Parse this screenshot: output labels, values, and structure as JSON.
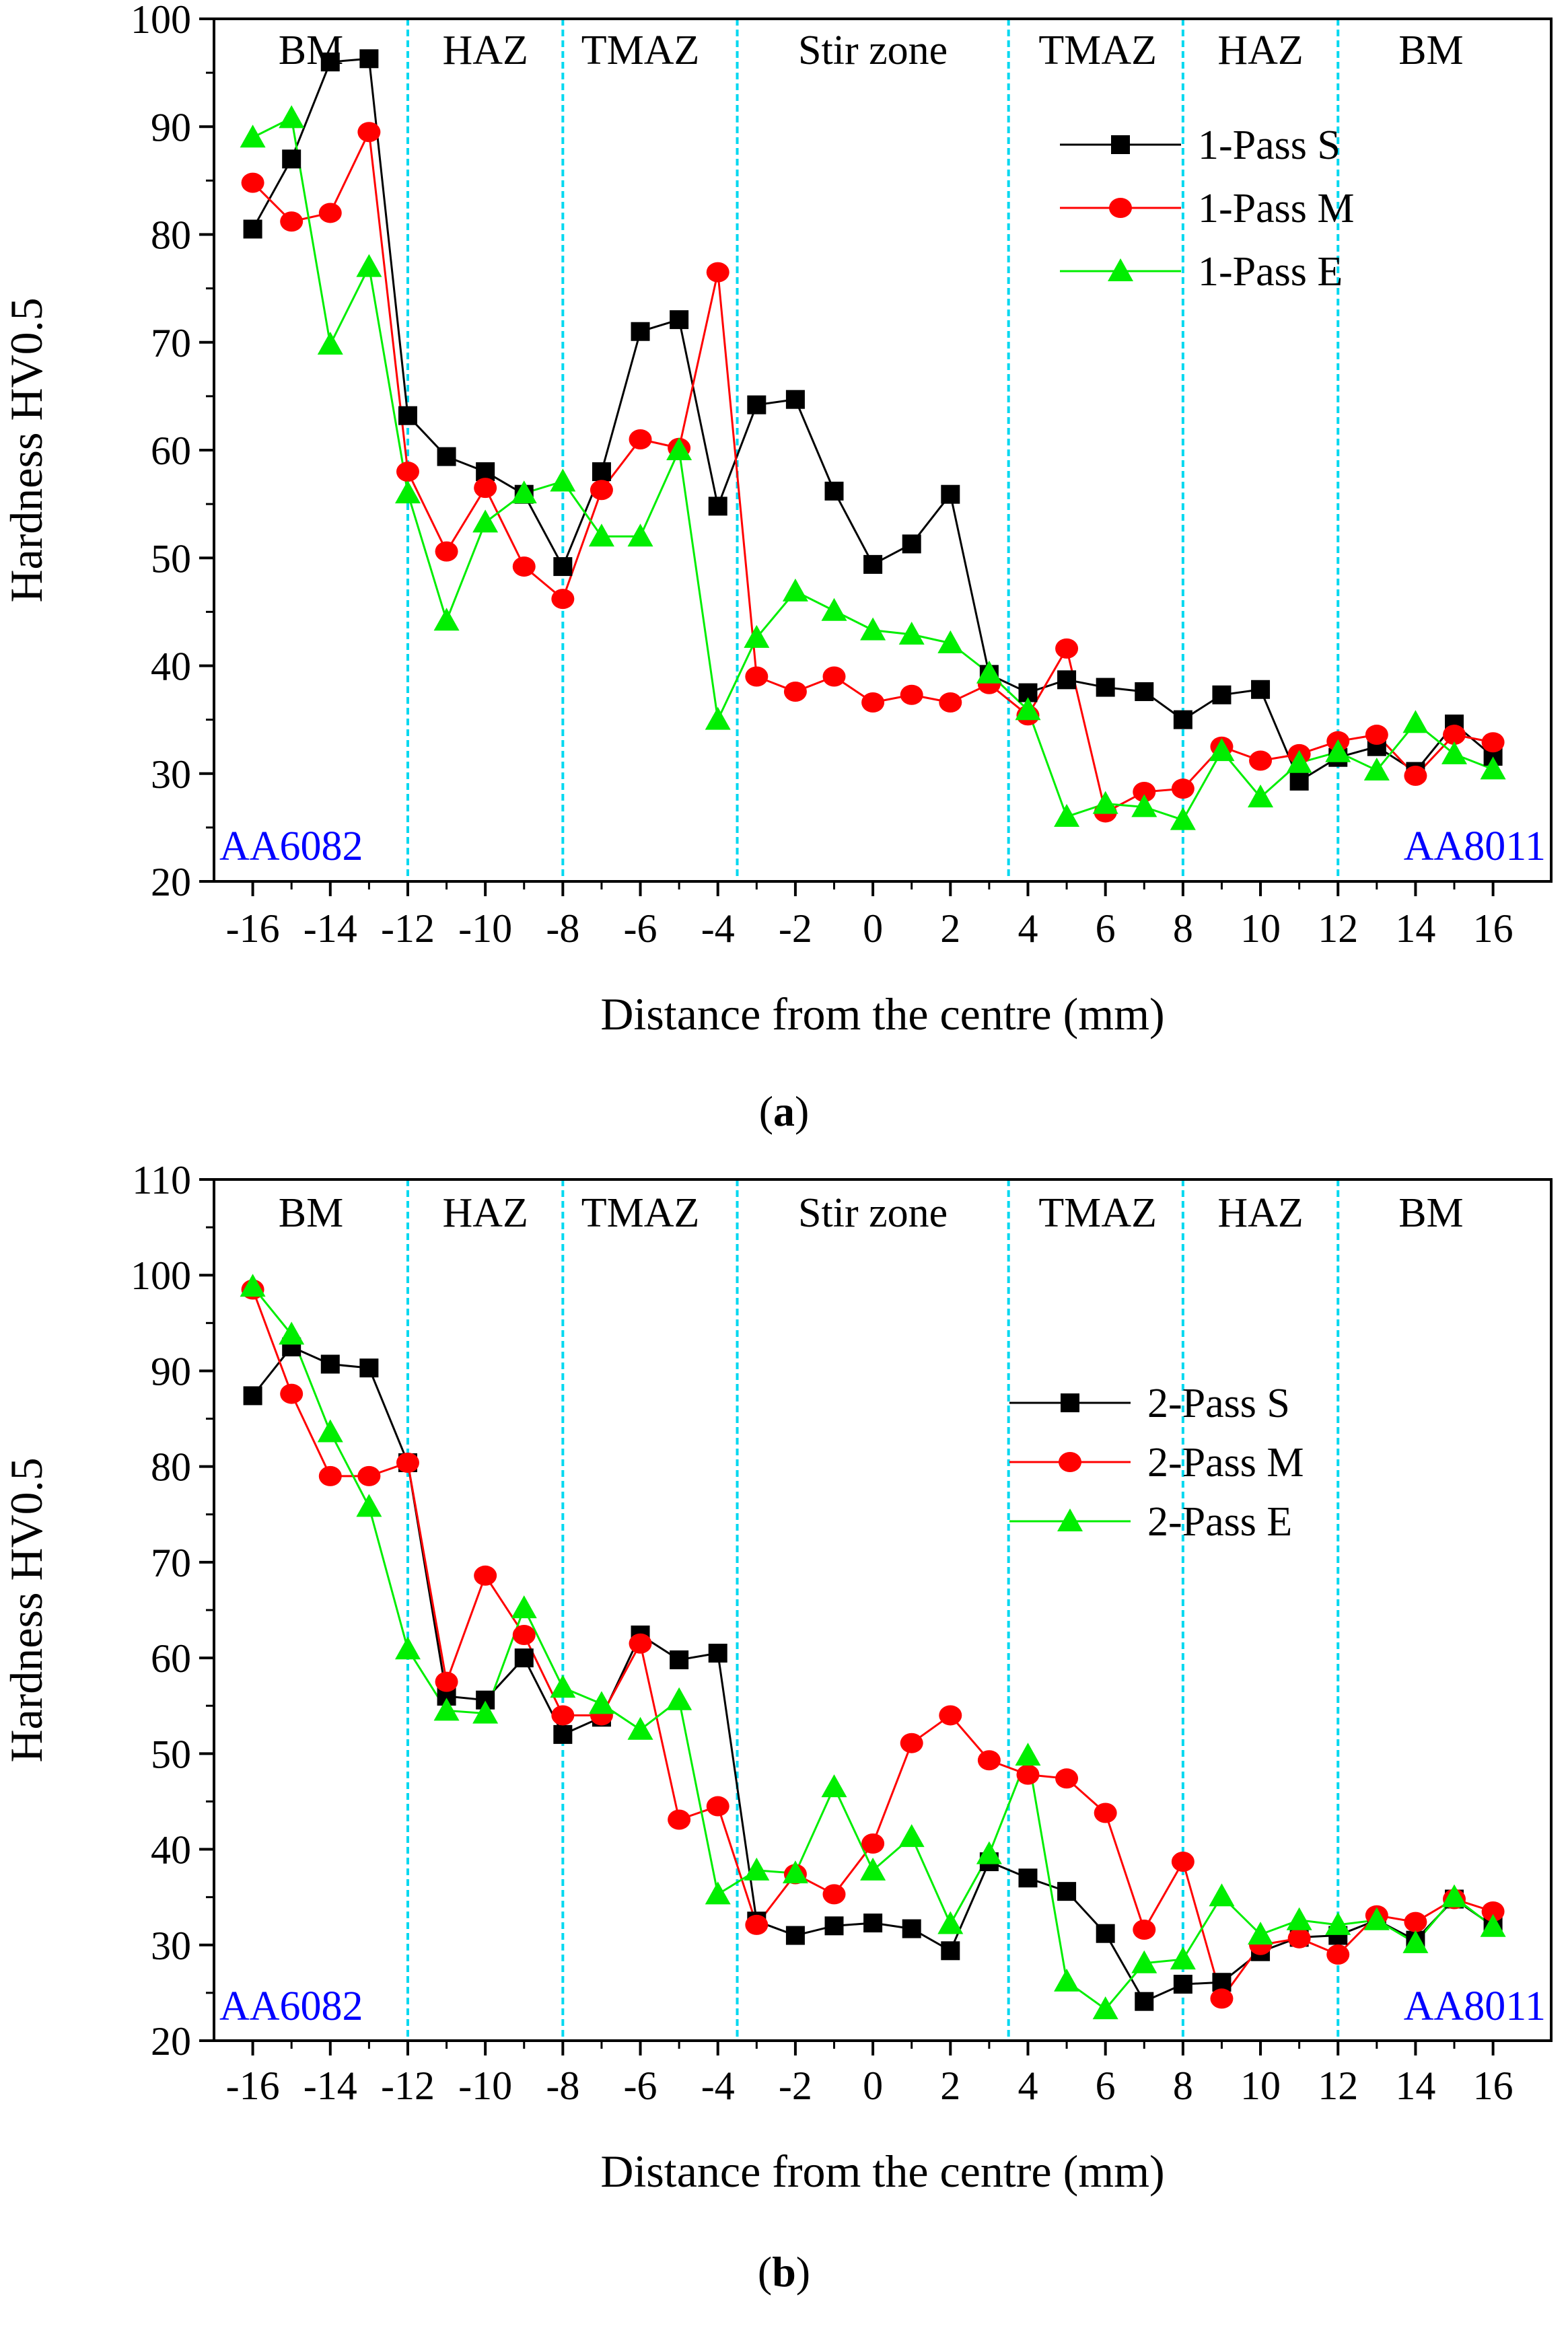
{
  "chart_data": [
    {
      "type": "line",
      "panel_label": "a",
      "xlabel": "Distance from the centre (mm)",
      "ylabel": "Hardness HV0.5",
      "xlim": [
        -17,
        17.5
      ],
      "ylim": [
        20,
        100
      ],
      "xticks": [
        -16,
        -14,
        -12,
        -10,
        -8,
        -6,
        -4,
        -2,
        0,
        2,
        4,
        6,
        8,
        10,
        12,
        14,
        16
      ],
      "xtick_labels": [
        "-16",
        "-14",
        "-12",
        "-10",
        "-8",
        "-6",
        "-4",
        "-2",
        "0",
        "2",
        "4",
        "6",
        "8",
        "10",
        "12",
        "14",
        "16"
      ],
      "yticks": [
        20,
        30,
        40,
        50,
        60,
        70,
        80,
        90,
        100
      ],
      "ytick_labels": [
        "20",
        "30",
        "40",
        "50",
        "60",
        "70",
        "80",
        "90",
        "100"
      ],
      "zone_boundaries": [
        -12,
        -8,
        -3.5,
        3.5,
        8,
        12
      ],
      "zones": [
        {
          "label": "BM",
          "x": -14.5
        },
        {
          "label": "HAZ",
          "x": -10
        },
        {
          "label": "TMAZ",
          "x": -6
        },
        {
          "label": "Stir zone",
          "x": 0
        },
        {
          "label": "TMAZ",
          "x": 5.8
        },
        {
          "label": "HAZ",
          "x": 10
        },
        {
          "label": "BM",
          "x": 14.4
        }
      ],
      "left_material": "AA6082",
      "right_material": "AA8011",
      "x": [
        -16,
        -15,
        -14,
        -13,
        -12,
        -11,
        -10,
        -9,
        -8,
        -7,
        -6,
        -5,
        -4,
        -3,
        -2,
        -1,
        0,
        1,
        2,
        3,
        4,
        5,
        6,
        7,
        8,
        9,
        10,
        11,
        12,
        13,
        14,
        15,
        16
      ],
      "series": [
        {
          "name": "1-Pass S",
          "color": "#000000",
          "marker": "square",
          "values": [
            80.5,
            87,
            96,
            96.3,
            63.2,
            59.4,
            58,
            55.9,
            49.2,
            58,
            71,
            72.1,
            54.8,
            64.2,
            64.7,
            56.2,
            49.4,
            51.3,
            55.9,
            39.2,
            37.5,
            38.7,
            38,
            37.6,
            35,
            37.3,
            37.8,
            29.3,
            31.5,
            32.5,
            30.2,
            34.6,
            31.6
          ]
        },
        {
          "name": "1-Pass M",
          "color": "#ff0000",
          "marker": "circle",
          "values": [
            84.8,
            81.2,
            82,
            89.5,
            58,
            50.6,
            56.5,
            49.2,
            46.2,
            56.3,
            61,
            60.2,
            76.5,
            39,
            37.6,
            39,
            36.6,
            37.3,
            36.6,
            38.3,
            35.4,
            41.6,
            26.4,
            28.3,
            28.6,
            32.5,
            31.2,
            31.8,
            33,
            33.6,
            29.8,
            33.6,
            32.9
          ]
        },
        {
          "name": "1-Pass E",
          "color": "#00ee00",
          "marker": "triangle",
          "values": [
            89,
            90.8,
            69.8,
            77,
            56,
            44.2,
            53.3,
            56,
            57.1,
            52,
            52,
            60,
            35,
            42.6,
            46.9,
            45.1,
            43.3,
            42.9,
            42.1,
            39.3,
            35.9,
            26,
            27.2,
            26.9,
            25.7,
            32.1,
            27.8,
            31,
            32,
            30.3,
            34.7,
            31.8,
            30.4
          ]
        }
      ]
    },
    {
      "type": "line",
      "panel_label": "b",
      "xlabel": "Distance from the centre (mm)",
      "ylabel": "Hardness HV0.5",
      "xlim": [
        -17,
        17.5
      ],
      "ylim": [
        20,
        110
      ],
      "xticks": [
        -16,
        -14,
        -12,
        -10,
        -8,
        -6,
        -4,
        -2,
        0,
        2,
        4,
        6,
        8,
        10,
        12,
        14,
        16
      ],
      "xtick_labels": [
        "-16",
        "-14",
        "-12",
        "-10",
        "-8",
        "-6",
        "-4",
        "-2",
        "0",
        "2",
        "4",
        "6",
        "8",
        "10",
        "12",
        "14",
        "16"
      ],
      "yticks": [
        20,
        30,
        40,
        50,
        60,
        70,
        80,
        90,
        100,
        110
      ],
      "ytick_labels": [
        "20",
        "30",
        "40",
        "50",
        "60",
        "70",
        "80",
        "90",
        "100",
        "110"
      ],
      "zone_boundaries": [
        -12,
        -8,
        -3.5,
        3.5,
        8,
        12
      ],
      "zones": [
        {
          "label": "BM",
          "x": -14.5
        },
        {
          "label": "HAZ",
          "x": -10
        },
        {
          "label": "TMAZ",
          "x": -6
        },
        {
          "label": "Stir zone",
          "x": 0
        },
        {
          "label": "TMAZ",
          "x": 5.8
        },
        {
          "label": "HAZ",
          "x": 10
        },
        {
          "label": "BM",
          "x": 14.4
        }
      ],
      "left_material": "AA6082",
      "right_material": "AA8011",
      "x": [
        -16,
        -15,
        -14,
        -13,
        -12,
        -11,
        -10,
        -9,
        -8,
        -7,
        -6,
        -5,
        -4,
        -3,
        -2,
        -1,
        0,
        1,
        2,
        3,
        4,
        5,
        6,
        7,
        8,
        9,
        10,
        11,
        12,
        13,
        14,
        15,
        16
      ],
      "series": [
        {
          "name": "2-Pass S",
          "color": "#000000",
          "marker": "square",
          "values": [
            87.4,
            92.5,
            90.7,
            90.3,
            80.4,
            56,
            55.6,
            60,
            52,
            53.8,
            62.4,
            59.8,
            60.5,
            32.5,
            31,
            32,
            32.3,
            31.7,
            29.4,
            38.7,
            37,
            35.6,
            31.2,
            24.1,
            25.9,
            26.1,
            29.3,
            30.8,
            31,
            32.6,
            30.5,
            34.8,
            32
          ]
        },
        {
          "name": "2-Pass M",
          "color": "#ff0000",
          "marker": "circle",
          "values": [
            98.5,
            87.6,
            79,
            79,
            80.4,
            57.5,
            68.6,
            62.4,
            54,
            54,
            61.5,
            43.1,
            44.5,
            32.1,
            37.4,
            35.3,
            40.6,
            51.1,
            54,
            49.3,
            47.8,
            47.4,
            43.8,
            31.6,
            38.7,
            24.4,
            30,
            30.7,
            29,
            33.1,
            32.4,
            34.8,
            33.5
          ]
        },
        {
          "name": "2-Pass E",
          "color": "#00ee00",
          "marker": "triangle",
          "values": [
            98.8,
            93.8,
            83.6,
            75.8,
            60.9,
            54.5,
            54.2,
            65.2,
            56.9,
            55.2,
            52.5,
            55.6,
            35.3,
            37.8,
            37.5,
            46.5,
            37.8,
            41.3,
            32.2,
            39.5,
            49.8,
            26.2,
            23.3,
            28.1,
            28.5,
            35.1,
            31.1,
            32.6,
            32.1,
            32.6,
            30.2,
            35,
            31.9
          ]
        }
      ]
    }
  ]
}
